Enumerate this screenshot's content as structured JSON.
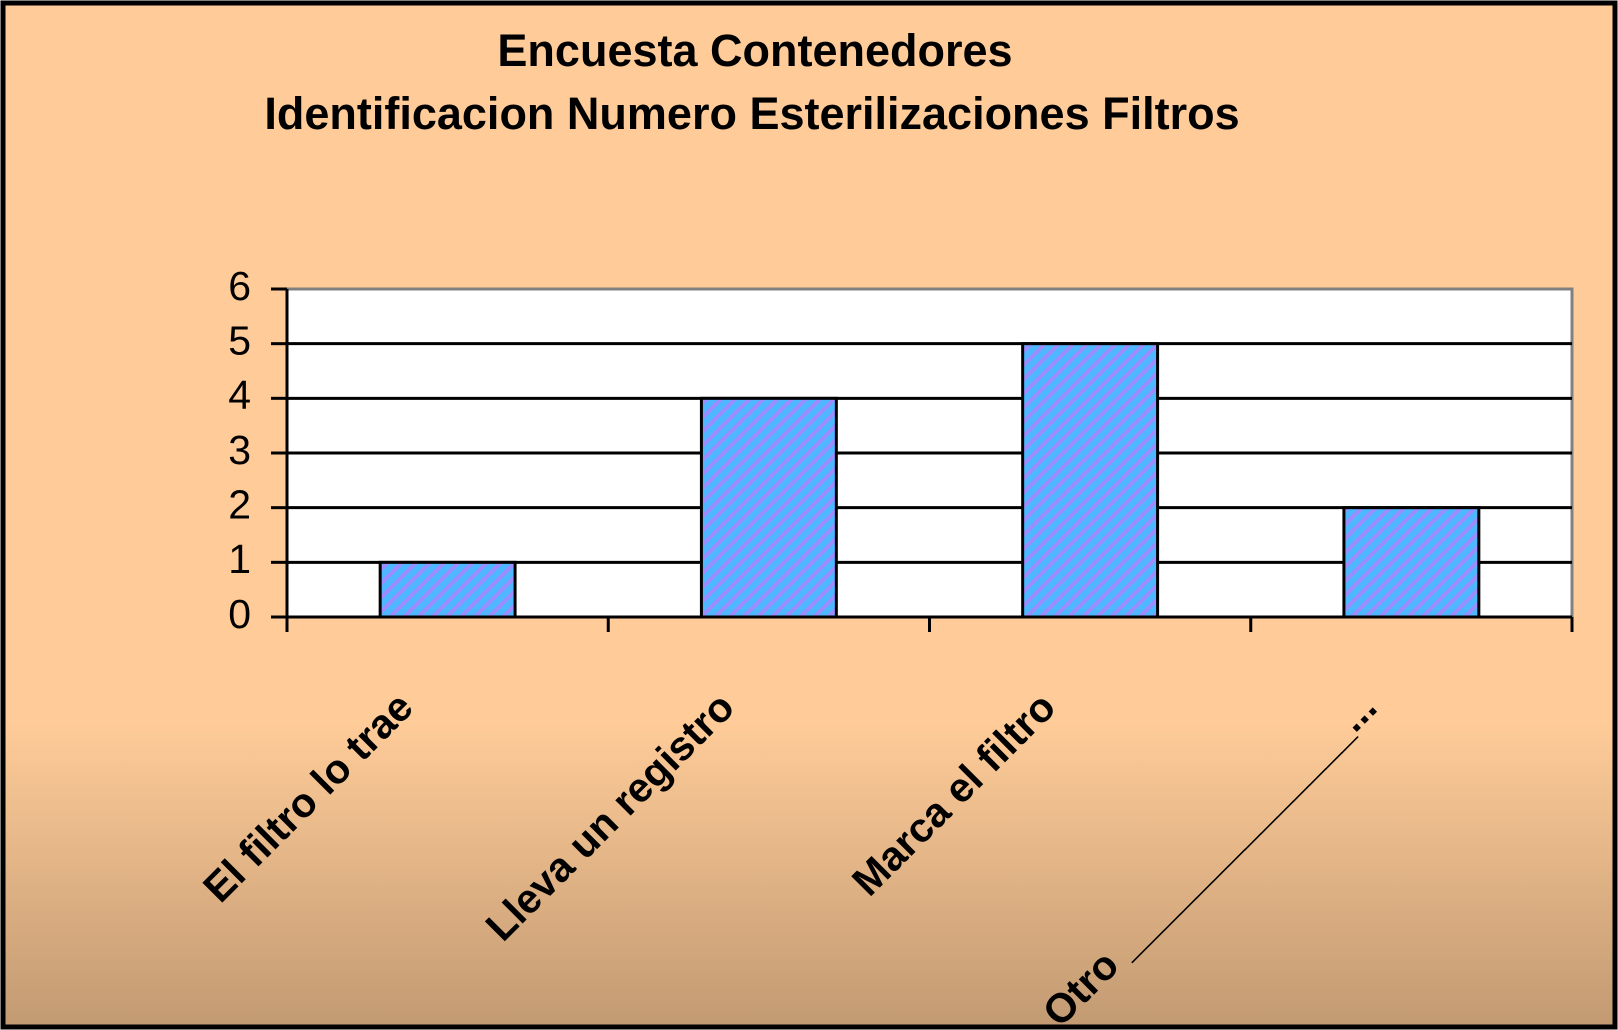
{
  "chart_data": {
    "type": "bar",
    "title": "Encuesta Contenedores",
    "subtitle": "Identificacion Numero Esterilizaciones Filtros",
    "categories": [
      "El filtro lo trae",
      "Lleva un registro",
      "Marca el filtro",
      "Otro ______________..."
    ],
    "values": [
      1,
      4,
      5,
      2
    ],
    "color": "#4db8ff",
    "ylim": [
      0,
      6
    ],
    "yticks": [
      0,
      1,
      2,
      3,
      4,
      5,
      6
    ],
    "grid": true
  }
}
